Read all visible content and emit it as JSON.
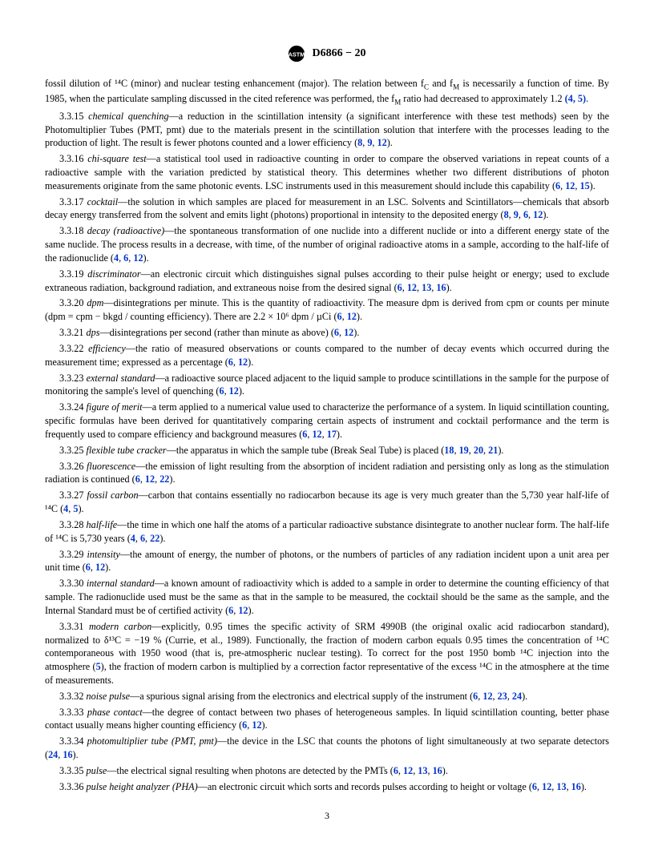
{
  "header": {
    "standard": "D6866 − 20"
  },
  "intro": {
    "p1": "fossil dilution of ¹⁴C (minor) and nuclear testing enhancement (major). The relation between f",
    "p1_sub1": "C",
    "p1_mid": " and f",
    "p1_sub2": "M",
    "p1_end": " is necessarily a function of time. By 1985, when the particulate sampling discussed in the cited reference was performed, the f",
    "p1_sub3": "M",
    "p1_end2": " ratio had decreased to approximately 1.2 ",
    "p1_refs": "(4, 5)",
    "p1_dot": "."
  },
  "defs": [
    {
      "num": "3.3.15",
      "term": "chemical quenching",
      "dash": "—",
      "body": "a reduction in the scintillation intensity (a significant interference with these test methods) seen by the Photomultiplier Tubes (PMT, pmt) due to the materials present in the scintillation solution that interfere with the processes leading to the production of light. The result is fewer photons counted and a lower efficiency ",
      "refs": "(8, 9, 12)",
      "dot": "."
    },
    {
      "num": "3.3.16",
      "term": "chi-square test",
      "dash": "—",
      "body": "a statistical tool used in radioactive counting in order to compare the observed variations in repeat counts of a radioactive sample with the variation predicted by statistical theory. This determines whether two different distributions of photon measurements originate from the same photonic events. LSC instruments used in this measurement should include this capability ",
      "refs": "(6, 12, 15)",
      "dot": "."
    },
    {
      "num": "3.3.17",
      "term": "cocktail",
      "dash": "—",
      "body": "the solution in which samples are placed for measurement in an LSC. Solvents and Scintillators—chemicals that absorb decay energy transferred from the solvent and emits light (photons) proportional in intensity to the deposited energy ",
      "refs": "(8, 9, 6, 12)",
      "dot": "."
    },
    {
      "num": "3.3.18",
      "term": "decay (radioactive)",
      "dash": "—",
      "body": "the spontaneous transformation of one nuclide into a different nuclide or into a different energy state of the same nuclide. The process results in a decrease, with time, of the number of original radioactive atoms in a sample, according to the half-life of the radionuclide ",
      "refs": "(4, 6, 12)",
      "dot": "."
    },
    {
      "num": "3.3.19",
      "term": "discriminator",
      "dash": "—",
      "body": "an electronic circuit which distinguishes signal pulses according to their pulse height or energy; used to exclude extraneous radiation, background radiation, and extraneous noise from the desired signal ",
      "refs": "(6, 12, 13, 16)",
      "dot": "."
    },
    {
      "num": "3.3.20",
      "term": "dpm",
      "dash": "—",
      "body": "disintegrations per minute. This is the quantity of radioactivity. The measure dpm is derived from cpm or counts per minute (dpm = cpm − bkgd / counting efficiency). There are 2.2 × 10⁶ dpm / µCi ",
      "refs": "(6, 12)",
      "dot": "."
    },
    {
      "num": "3.3.21",
      "term": "dps",
      "dash": "—",
      "body": "disintegrations per second (rather than minute as above) ",
      "refs": "(6, 12)",
      "dot": "."
    },
    {
      "num": "3.3.22",
      "term": "efficiency",
      "dash": "—",
      "body": "the ratio of measured observations or counts compared to the number of decay events which occurred during the measurement time; expressed as a percentage ",
      "refs": "(6, 12)",
      "dot": "."
    },
    {
      "num": "3.3.23",
      "term": "external standard",
      "dash": "—",
      "body": "a radioactive source placed adjacent to the liquid sample to produce scintillations in the sample for the purpose of monitoring the sample's level of quenching ",
      "refs": "(6, 12)",
      "dot": "."
    },
    {
      "num": "3.3.24",
      "term": "figure of merit",
      "dash": "—",
      "body": "a term applied to a numerical value used to characterize the performance of a system. In liquid scintillation counting, specific formulas have been derived for quantitatively comparing certain aspects of instrument and cocktail performance and the term is frequently used to compare efficiency and background measures ",
      "refs": "(6, 12, 17)",
      "dot": "."
    },
    {
      "num": "3.3.25",
      "term": "flexible tube cracker",
      "dash": "—",
      "body": "the apparatus in which the sample tube (Break Seal Tube) is placed ",
      "refs": "(18, 19, 20, 21)",
      "dot": "."
    },
    {
      "num": "3.3.26",
      "term": "fluorescence",
      "dash": "—",
      "body": "the emission of light resulting from the absorption of incident radiation and persisting only as long as the stimulation radiation is continued ",
      "refs": "(6, 12, 22)",
      "dot": "."
    },
    {
      "num": "3.3.27",
      "term": "fossil carbon",
      "dash": "—",
      "body": "carbon that contains essentially no radiocarbon because its age is very much greater than the 5,730 year half-life of ¹⁴C ",
      "refs": "(4, 5)",
      "dot": "."
    },
    {
      "num": "3.3.28",
      "term": "half-life",
      "dash": "—",
      "body": "the time in which one half the atoms of a particular radioactive substance disintegrate to another nuclear form. The half-life of ¹⁴C is 5,730 years ",
      "refs": "(4, 6, 22)",
      "dot": "."
    },
    {
      "num": "3.3.29",
      "term": "intensity",
      "dash": "—",
      "body": "the amount of energy, the number of photons, or the numbers of particles of any radiation incident upon a unit area per unit time ",
      "refs": "(6, 12)",
      "dot": "."
    },
    {
      "num": "3.3.30",
      "term": "internal standard",
      "dash": "—",
      "body": "a known amount of radioactivity which is added to a sample in order to determine the counting efficiency of that sample. The radionuclide used must be the same as that in the sample to be measured, the cocktail should be the same as the sample, and the Internal Standard must be of certified activity ",
      "refs": "(6, 12)",
      "dot": "."
    },
    {
      "num": "3.3.31",
      "term": "modern carbon",
      "dash": "—",
      "body": "explicitly, 0.95 times the specific activity of SRM 4990B (the original oxalic acid radiocarbon standard), normalized to δ¹³C = −19 % (Currie, et al., 1989). Functionally, the fraction of modern carbon equals 0.95 times the concentration of ¹⁴C contemporaneous with 1950 wood (that is, pre-atmospheric nuclear testing). To correct for the post 1950 bomb ¹⁴C injection into the atmosphere ",
      "refs": "(5)",
      "body2": ", the fraction of modern carbon is multiplied by a correction factor representative of the excess ¹⁴C in the atmosphere at the time of measurements.",
      "dot": ""
    },
    {
      "num": "3.3.32",
      "term": "noise pulse",
      "dash": "—",
      "body": "a spurious signal arising from the electronics and electrical supply of the instrument ",
      "refs": "(6, 12, 23, 24)",
      "dot": "."
    },
    {
      "num": "3.3.33",
      "term": "phase contact",
      "dash": "—",
      "body": "the degree of contact between two phases of heterogeneous samples. In liquid scintillation counting, better phase contact usually means higher counting efficiency ",
      "refs": "(6, 12)",
      "dot": "."
    },
    {
      "num": "3.3.34",
      "term": "photomultiplier tube (PMT, pmt)",
      "dash": "—",
      "body": "the device in the LSC that counts the photons of light simultaneously at two separate detectors ",
      "refs": "(24, 16)",
      "dot": "."
    },
    {
      "num": "3.3.35",
      "term": "pulse",
      "dash": "—",
      "body": "the electrical signal resulting when photons are detected by the PMTs ",
      "refs": "(6, 12, 13, 16)",
      "dot": "."
    },
    {
      "num": "3.3.36",
      "term": "pulse height analyzer (PHA)",
      "dash": "—",
      "body": "an electronic circuit which sorts and records pulses according to height or voltage ",
      "refs": "(6, 12, 13, 16)",
      "dot": "."
    }
  ],
  "page_number": "3",
  "refs_map": {
    "(4, 5)": [
      "4",
      "5"
    ],
    "(8, 9, 12)": [
      "8",
      "9",
      "12"
    ],
    "(6, 12, 15)": [
      "6",
      "12",
      "15"
    ],
    "(8, 9, 6, 12)": [
      "8",
      "9",
      "6",
      "12"
    ],
    "(4, 6, 12)": [
      "4",
      "6",
      "12"
    ],
    "(6, 12, 13, 16)": [
      "6",
      "12",
      "13",
      "16"
    ],
    "(6, 12)": [
      "6",
      "12"
    ],
    "(6, 12, 17)": [
      "6",
      "12",
      "17"
    ],
    "(18, 19, 20, 21)": [
      "18",
      "19",
      "20",
      "21"
    ],
    "(6, 12, 22)": [
      "6",
      "12",
      "22"
    ],
    "(4, 6, 22)": [
      "4",
      "6",
      "22"
    ],
    "(5)": [
      "5"
    ],
    "(6, 12, 23, 24)": [
      "6",
      "12",
      "23",
      "24"
    ],
    "(24, 16)": [
      "24",
      "16"
    ]
  }
}
